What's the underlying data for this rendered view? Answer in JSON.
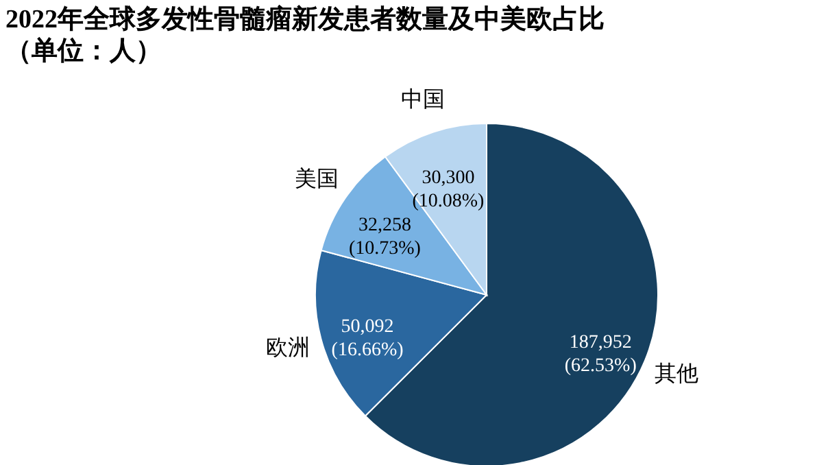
{
  "chart_data": {
    "type": "pie",
    "title": "2022年全球多发性骨髓瘤新发患者数量及中美欧占比",
    "subtitle": "（单位：人）",
    "categories": [
      "其他",
      "欧洲",
      "美国",
      "中国"
    ],
    "values": [
      187952,
      50092,
      32258,
      30300
    ],
    "value_labels": [
      "187,952 (62.53%)",
      "50,092 (16.66%)",
      "32,258 (10.73%)",
      "30,300 (10.08%)"
    ],
    "colors": [
      "#16405f",
      "#2a679f",
      "#78b2e3",
      "#b8d6f0"
    ],
    "legend": false
  }
}
